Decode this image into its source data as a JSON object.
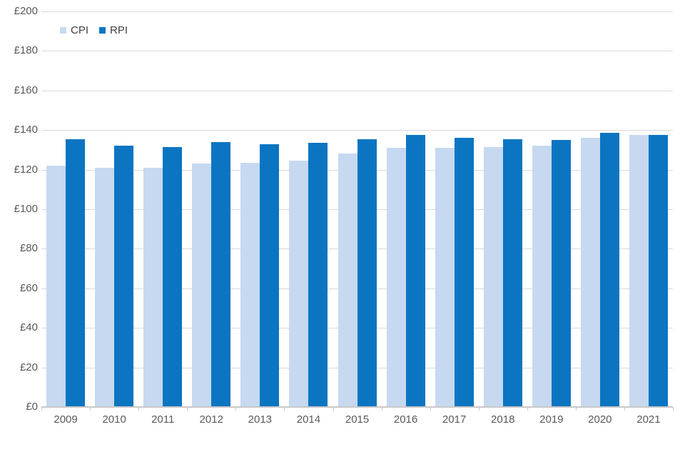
{
  "chart_data": {
    "type": "bar",
    "title": "",
    "xlabel": "",
    "ylabel": "",
    "categories": [
      "2009",
      "2010",
      "2011",
      "2012",
      "2013",
      "2014",
      "2015",
      "2016",
      "2017",
      "2018",
      "2019",
      "2020",
      "2021"
    ],
    "series": [
      {
        "name": "CPI",
        "color": "#c6d9f0",
        "values": [
          122,
          121,
          121,
          123,
          123.5,
          124.5,
          128,
          131,
          131,
          131.5,
          132,
          136,
          137.5
        ]
      },
      {
        "name": "RPI",
        "color": "#0b75c2",
        "values": [
          135.5,
          132,
          131.5,
          134,
          133,
          133.5,
          135.5,
          137.5,
          136,
          135.5,
          135,
          138.5,
          137.5
        ]
      }
    ],
    "ylim": [
      0,
      200
    ],
    "ytick_step": 20,
    "ytick_labels": [
      "£0",
      "£20",
      "£40",
      "£60",
      "£80",
      "£100",
      "£120",
      "£140",
      "£160",
      "£180",
      "£200"
    ],
    "currency_prefix": "£",
    "grid": "horizontal",
    "legend_position": "top-left"
  },
  "colors": {
    "cpi_bar": "#c6d9f0",
    "rpi_bar": "#0b75c2",
    "gridline": "#d9d9d9",
    "axis_line": "#c9c9c9",
    "axis_label_text": "#595959",
    "legend_text": "#404040",
    "background": "#ffffff"
  }
}
